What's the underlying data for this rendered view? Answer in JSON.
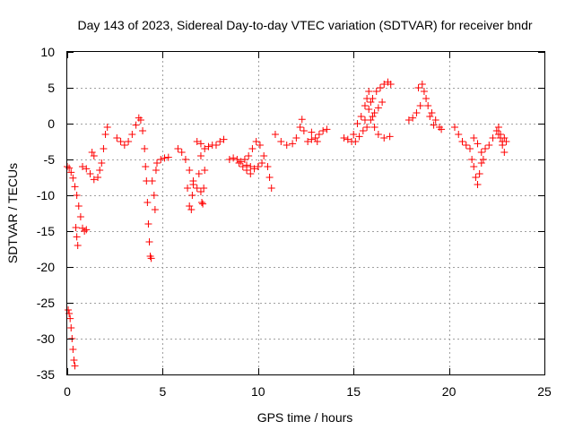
{
  "chart_data": {
    "type": "scatter",
    "title": "Day 143 of 2023, Sidereal Day-to-day VTEC variation (SDTVAR) for receiver bndr",
    "xlabel": "GPS time / hours",
    "ylabel": "SDTVAR / TECUs",
    "xlim": [
      0,
      25
    ],
    "ylim": [
      -35,
      10
    ],
    "xticks": [
      0,
      5,
      10,
      15,
      20,
      25
    ],
    "yticks": [
      -35,
      -30,
      -25,
      -20,
      -15,
      -10,
      -5,
      0,
      5,
      10
    ],
    "grid": true,
    "marker": "plus",
    "color": "#ff0000",
    "series": [
      {
        "name": "SDTVAR",
        "points": [
          [
            0.0,
            -6.0
          ],
          [
            0.1,
            -6.2
          ],
          [
            0.2,
            -6.8
          ],
          [
            0.3,
            -7.6
          ],
          [
            0.4,
            -8.8
          ],
          [
            0.5,
            -10.0
          ],
          [
            0.6,
            -11.5
          ],
          [
            0.7,
            -13.0
          ],
          [
            0.8,
            -14.6
          ],
          [
            0.9,
            -15.0
          ],
          [
            1.0,
            -14.8
          ],
          [
            0.45,
            -14.5
          ],
          [
            0.5,
            -15.8
          ],
          [
            0.55,
            -17.0
          ],
          [
            0.05,
            -26.0
          ],
          [
            0.1,
            -26.5
          ],
          [
            0.15,
            -27.2
          ],
          [
            0.2,
            -28.5
          ],
          [
            0.25,
            -30.0
          ],
          [
            0.3,
            -31.5
          ],
          [
            0.35,
            -33.0
          ],
          [
            0.4,
            -33.8
          ],
          [
            0.8,
            -6.0
          ],
          [
            1.0,
            -6.3
          ],
          [
            1.2,
            -7.0
          ],
          [
            1.4,
            -7.8
          ],
          [
            1.6,
            -7.5
          ],
          [
            1.7,
            -6.5
          ],
          [
            1.8,
            -5.5
          ],
          [
            1.9,
            -3.5
          ],
          [
            2.0,
            -1.5
          ],
          [
            2.1,
            -0.5
          ],
          [
            1.3,
            -4.0
          ],
          [
            1.4,
            -4.5
          ],
          [
            2.6,
            -2.0
          ],
          [
            2.8,
            -2.5
          ],
          [
            3.0,
            -3.0
          ],
          [
            3.2,
            -2.5
          ],
          [
            3.4,
            -1.5
          ],
          [
            3.6,
            -0.2
          ],
          [
            3.75,
            0.8
          ],
          [
            3.85,
            0.5
          ],
          [
            3.95,
            -1.0
          ],
          [
            4.05,
            -3.5
          ],
          [
            4.1,
            -6.0
          ],
          [
            4.15,
            -8.0
          ],
          [
            4.2,
            -11.0
          ],
          [
            4.25,
            -14.0
          ],
          [
            4.3,
            -16.5
          ],
          [
            4.35,
            -18.5
          ],
          [
            4.4,
            -18.8
          ],
          [
            4.45,
            -8.0
          ],
          [
            4.55,
            -10.0
          ],
          [
            4.6,
            -12.0
          ],
          [
            4.65,
            -6.5
          ],
          [
            4.7,
            -5.5
          ],
          [
            4.9,
            -5.0
          ],
          [
            5.1,
            -4.8
          ],
          [
            5.3,
            -4.7
          ],
          [
            5.8,
            -3.5
          ],
          [
            6.0,
            -4.0
          ],
          [
            6.2,
            -5.0
          ],
          [
            6.4,
            -6.5
          ],
          [
            6.6,
            -8.0
          ],
          [
            6.8,
            -9.0
          ],
          [
            6.9,
            -7.0
          ],
          [
            7.0,
            -4.5
          ],
          [
            7.2,
            -3.5
          ],
          [
            7.4,
            -3.2
          ],
          [
            7.6,
            -3.0
          ],
          [
            7.8,
            -3.0
          ],
          [
            8.0,
            -2.5
          ],
          [
            8.2,
            -2.2
          ],
          [
            6.3,
            -9.0
          ],
          [
            6.4,
            -11.5
          ],
          [
            6.5,
            -12.0
          ],
          [
            6.55,
            -10.0
          ],
          [
            6.6,
            -8.5
          ],
          [
            7.0,
            -9.5
          ],
          [
            7.05,
            -11.0
          ],
          [
            7.1,
            -11.2
          ],
          [
            7.15,
            -9.0
          ],
          [
            7.2,
            -6.5
          ],
          [
            6.8,
            -2.5
          ],
          [
            7.0,
            -2.8
          ],
          [
            8.5,
            -5.0
          ],
          [
            8.7,
            -4.8
          ],
          [
            8.9,
            -5.0
          ],
          [
            9.1,
            -5.3
          ],
          [
            9.3,
            -5.0
          ],
          [
            9.5,
            -4.5
          ],
          [
            9.7,
            -3.5
          ],
          [
            9.9,
            -2.5
          ],
          [
            10.1,
            -3.0
          ],
          [
            10.3,
            -4.5
          ],
          [
            10.5,
            -6.0
          ],
          [
            10.6,
            -7.5
          ],
          [
            10.7,
            -9.0
          ],
          [
            9.0,
            -5.5
          ],
          [
            9.2,
            -6.0
          ],
          [
            9.4,
            -5.8
          ],
          [
            9.6,
            -6.0
          ],
          [
            9.8,
            -6.3
          ],
          [
            10.0,
            -6.0
          ],
          [
            10.2,
            -5.5
          ],
          [
            9.4,
            -6.5
          ],
          [
            9.6,
            -7.0
          ],
          [
            10.9,
            -1.5
          ],
          [
            11.2,
            -2.5
          ],
          [
            11.5,
            -3.0
          ],
          [
            11.8,
            -2.8
          ],
          [
            12.0,
            -2.0
          ],
          [
            12.2,
            -0.5
          ],
          [
            12.3,
            0.6
          ],
          [
            12.4,
            -1.0
          ],
          [
            12.6,
            -2.5
          ],
          [
            12.8,
            -2.2
          ],
          [
            13.0,
            -2.0
          ],
          [
            13.2,
            -1.5
          ],
          [
            13.4,
            -1.0
          ],
          [
            13.6,
            -0.8
          ],
          [
            12.8,
            -1.2
          ],
          [
            13.1,
            -2.5
          ],
          [
            14.5,
            -2.0
          ],
          [
            14.7,
            -2.2
          ],
          [
            14.9,
            -2.5
          ],
          [
            15.0,
            -1.5
          ],
          [
            15.2,
            0.0
          ],
          [
            15.4,
            1.0
          ],
          [
            15.6,
            0.5
          ],
          [
            15.8,
            2.0
          ],
          [
            16.0,
            3.5
          ],
          [
            16.2,
            4.5
          ],
          [
            16.4,
            5.0
          ],
          [
            16.6,
            5.5
          ],
          [
            16.8,
            5.8
          ],
          [
            16.95,
            5.5
          ],
          [
            15.1,
            -2.5
          ],
          [
            15.3,
            -1.8
          ],
          [
            15.5,
            -1.0
          ],
          [
            15.7,
            -0.5
          ],
          [
            15.9,
            0.5
          ],
          [
            16.1,
            1.5
          ],
          [
            16.3,
            2.2
          ],
          [
            16.5,
            3.0
          ],
          [
            15.6,
            2.5
          ],
          [
            15.7,
            3.5
          ],
          [
            15.8,
            4.5
          ],
          [
            15.9,
            3.0
          ],
          [
            16.0,
            1.0
          ],
          [
            16.1,
            -0.5
          ],
          [
            16.3,
            -1.5
          ],
          [
            16.6,
            -2.0
          ],
          [
            16.9,
            -1.8
          ],
          [
            17.9,
            0.5
          ],
          [
            18.1,
            0.8
          ],
          [
            18.3,
            1.5
          ],
          [
            18.5,
            2.5
          ],
          [
            18.6,
            5.5
          ],
          [
            18.7,
            4.5
          ],
          [
            18.8,
            3.5
          ],
          [
            18.9,
            2.5
          ],
          [
            19.1,
            1.5
          ],
          [
            19.3,
            0.5
          ],
          [
            19.5,
            -0.5
          ],
          [
            19.6,
            -0.8
          ],
          [
            18.4,
            5.0
          ],
          [
            19.0,
            1.0
          ],
          [
            19.2,
            -0.2
          ],
          [
            20.3,
            -0.5
          ],
          [
            20.5,
            -1.5
          ],
          [
            20.7,
            -2.5
          ],
          [
            20.9,
            -3.0
          ],
          [
            21.1,
            -3.5
          ],
          [
            21.3,
            -2.0
          ],
          [
            21.5,
            -2.8
          ],
          [
            21.7,
            -4.0
          ],
          [
            21.9,
            -3.5
          ],
          [
            22.1,
            -3.0
          ],
          [
            22.3,
            -2.0
          ],
          [
            22.5,
            -1.0
          ],
          [
            22.6,
            -0.5
          ],
          [
            22.7,
            -1.5
          ],
          [
            22.8,
            -3.0
          ],
          [
            22.9,
            -4.0
          ],
          [
            21.2,
            -5.0
          ],
          [
            21.3,
            -6.0
          ],
          [
            21.4,
            -7.5
          ],
          [
            21.5,
            -8.5
          ],
          [
            21.6,
            -7.0
          ],
          [
            21.7,
            -5.5
          ],
          [
            21.8,
            -5.0
          ],
          [
            22.6,
            -1.5
          ],
          [
            22.7,
            -2.0
          ],
          [
            22.8,
            -2.5
          ],
          [
            22.9,
            -2.0
          ],
          [
            23.0,
            -2.5
          ]
        ]
      }
    ]
  }
}
